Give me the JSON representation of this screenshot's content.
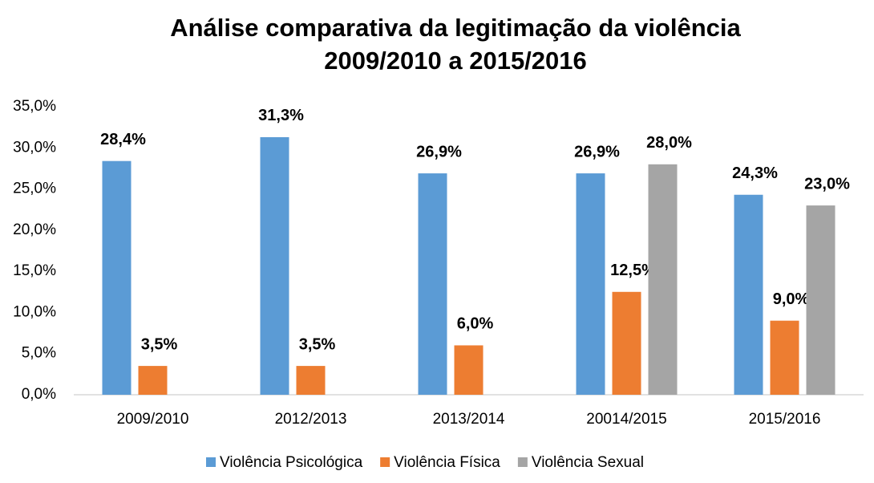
{
  "chart_data": {
    "type": "bar",
    "title": "Análise comparativa da legitimação da violência",
    "subtitle": "2009/2010 a 2015/2016",
    "categories": [
      "2009/2010",
      "2012/2013",
      "2013/2014",
      "20014/2015",
      "2015/2016"
    ],
    "series": [
      {
        "name": "Violência Psicológica",
        "color": "#5b9bd5",
        "values": [
          28.4,
          31.3,
          26.9,
          26.9,
          24.3
        ],
        "value_labels": [
          "28,4%",
          "31,3%",
          "26,9%",
          "26,9%",
          "24,3%"
        ]
      },
      {
        "name": "Violência Física",
        "color": "#ed7d31",
        "values": [
          3.5,
          3.5,
          6.0,
          12.5,
          9.0
        ],
        "value_labels": [
          "3,5%",
          "3,5%",
          "6,0%",
          "12,5%",
          "9,0%"
        ]
      },
      {
        "name": "Violência Sexual",
        "color": "#a5a5a5",
        "values": [
          null,
          null,
          null,
          28.0,
          23.0
        ],
        "value_labels": [
          null,
          null,
          null,
          "28,0%",
          "23,0%"
        ]
      }
    ],
    "ylim": [
      0,
      35
    ],
    "yticks": [
      {
        "value": 0,
        "label": "0,0%"
      },
      {
        "value": 5,
        "label": "5,0%"
      },
      {
        "value": 10,
        "label": "10,0%"
      },
      {
        "value": 15,
        "label": "15,0%"
      },
      {
        "value": 20,
        "label": "20,0%"
      },
      {
        "value": 25,
        "label": "25,0%"
      },
      {
        "value": 30,
        "label": "30,0%"
      },
      {
        "value": 35,
        "label": "35,0%"
      }
    ],
    "grid": false,
    "legend": "bottom"
  }
}
